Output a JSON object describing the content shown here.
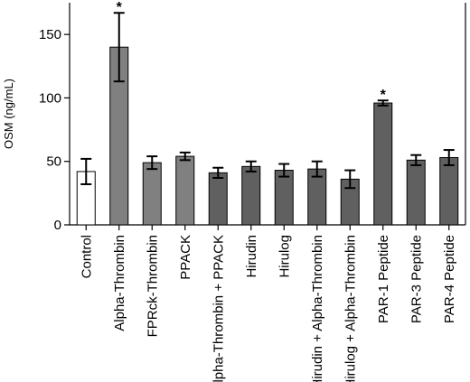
{
  "chart_data": {
    "type": "bar",
    "title": "",
    "xlabel": "",
    "ylabel": "OSM (ng/mL)",
    "ylim": [
      0,
      175
    ],
    "yticks": [
      0,
      50,
      100,
      150
    ],
    "grid": false,
    "categories": [
      "Control",
      "Alpha-Thrombin",
      "FPRck-Thrombin",
      "PPACK",
      "Alpha-Thrombin + PPACK",
      "Hirudin",
      "Hirulog",
      "Hirudin + Alpha-Thrombin",
      "Hirulog + Alpha-Thrombin",
      "PAR-1 Peptide",
      "PAR-3 Peptide",
      "PAR-4 Peptide"
    ],
    "values": [
      42,
      140,
      49,
      54,
      41,
      46,
      43,
      44,
      36,
      96,
      51,
      53
    ],
    "errors": [
      10,
      27,
      5,
      3,
      4,
      4,
      5,
      6,
      7,
      2,
      4,
      6
    ],
    "colors": [
      "#ffffff",
      "#808080",
      "#808080",
      "#808080",
      "#606060",
      "#606060",
      "#606060",
      "#606060",
      "#606060",
      "#606060",
      "#606060",
      "#606060"
    ],
    "significance": [
      "",
      "*",
      "",
      "",
      "",
      "",
      "",
      "",
      "",
      "*",
      "",
      ""
    ]
  }
}
